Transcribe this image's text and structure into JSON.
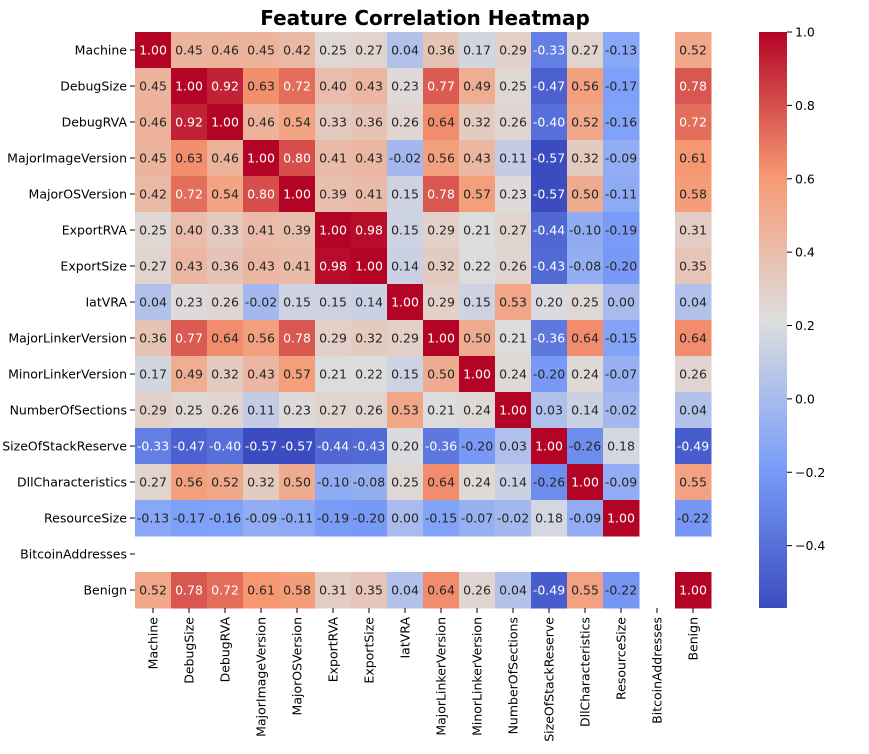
{
  "chart_data": {
    "type": "heatmap",
    "title": "Feature Correlation Heatmap",
    "labels": [
      "Machine",
      "DebugSize",
      "DebugRVA",
      "MajorImageVersion",
      "MajorOSVersion",
      "ExportRVA",
      "ExportSize",
      "IatVRA",
      "MajorLinkerVersion",
      "MinorLinkerVersion",
      "NumberOfSections",
      "SizeOfStackReserve",
      "DllCharacteristics",
      "ResourceSize",
      "BitcoinAddresses",
      "Benign"
    ],
    "matrix": [
      [
        1.0,
        0.45,
        0.46,
        0.45,
        0.42,
        0.25,
        0.27,
        0.04,
        0.36,
        0.17,
        0.29,
        -0.33,
        0.27,
        -0.13,
        null,
        0.52
      ],
      [
        0.45,
        1.0,
        0.92,
        0.63,
        0.72,
        0.4,
        0.43,
        0.23,
        0.77,
        0.49,
        0.25,
        -0.47,
        0.56,
        -0.17,
        null,
        0.78
      ],
      [
        0.46,
        0.92,
        1.0,
        0.46,
        0.54,
        0.33,
        0.36,
        0.26,
        0.64,
        0.32,
        0.26,
        -0.4,
        0.52,
        -0.16,
        null,
        0.72
      ],
      [
        0.45,
        0.63,
        0.46,
        1.0,
        0.8,
        0.41,
        0.43,
        -0.02,
        0.56,
        0.43,
        0.11,
        -0.57,
        0.32,
        -0.09,
        null,
        0.61
      ],
      [
        0.42,
        0.72,
        0.54,
        0.8,
        1.0,
        0.39,
        0.41,
        0.15,
        0.78,
        0.57,
        0.23,
        -0.57,
        0.5,
        -0.11,
        null,
        0.58
      ],
      [
        0.25,
        0.4,
        0.33,
        0.41,
        0.39,
        1.0,
        0.98,
        0.15,
        0.29,
        0.21,
        0.27,
        -0.44,
        -0.1,
        -0.19,
        null,
        0.31
      ],
      [
        0.27,
        0.43,
        0.36,
        0.43,
        0.41,
        0.98,
        1.0,
        0.14,
        0.32,
        0.22,
        0.26,
        -0.43,
        -0.08,
        -0.2,
        null,
        0.35
      ],
      [
        0.04,
        0.23,
        0.26,
        -0.02,
        0.15,
        0.15,
        0.14,
        1.0,
        0.29,
        0.15,
        0.53,
        0.2,
        0.25,
        0.0,
        null,
        0.04
      ],
      [
        0.36,
        0.77,
        0.64,
        0.56,
        0.78,
        0.29,
        0.32,
        0.29,
        1.0,
        0.5,
        0.21,
        -0.36,
        0.64,
        -0.15,
        null,
        0.64
      ],
      [
        0.17,
        0.49,
        0.32,
        0.43,
        0.57,
        0.21,
        0.22,
        0.15,
        0.5,
        1.0,
        0.24,
        -0.2,
        0.24,
        -0.07,
        null,
        0.26
      ],
      [
        0.29,
        0.25,
        0.26,
        0.11,
        0.23,
        0.27,
        0.26,
        0.53,
        0.21,
        0.24,
        1.0,
        0.03,
        0.14,
        -0.02,
        null,
        0.04
      ],
      [
        -0.33,
        -0.47,
        -0.4,
        -0.57,
        -0.57,
        -0.44,
        -0.43,
        0.2,
        -0.36,
        -0.2,
        0.03,
        1.0,
        -0.26,
        0.18,
        null,
        -0.49
      ],
      [
        0.27,
        0.56,
        0.52,
        0.32,
        0.5,
        -0.1,
        -0.08,
        0.25,
        0.64,
        0.24,
        0.14,
        -0.26,
        1.0,
        -0.09,
        null,
        0.55
      ],
      [
        -0.13,
        -0.17,
        -0.16,
        -0.09,
        -0.11,
        -0.19,
        -0.2,
        0.0,
        -0.15,
        -0.07,
        -0.02,
        0.18,
        -0.09,
        1.0,
        null,
        -0.22
      ],
      [
        null,
        null,
        null,
        null,
        null,
        null,
        null,
        null,
        null,
        null,
        null,
        null,
        null,
        null,
        null,
        null
      ],
      [
        0.52,
        0.78,
        0.72,
        0.61,
        0.58,
        0.31,
        0.35,
        0.04,
        0.64,
        0.26,
        0.04,
        -0.49,
        0.55,
        -0.22,
        null,
        1.0
      ]
    ],
    "value_format": "2 decimals",
    "colormap": "coolwarm",
    "vmin": -0.57,
    "vmax": 1.0,
    "colorbar_ticks": [
      "1.0",
      "0.8",
      "0.6",
      "0.4",
      "0.2",
      "0.0",
      "−0.2",
      "−0.4"
    ],
    "colorbar_tick_values": [
      1.0,
      0.8,
      0.6,
      0.4,
      0.2,
      0.0,
      -0.2,
      -0.4
    ],
    "missing_color": "#ffffff",
    "grid": false,
    "legend": "colorbar-right"
  }
}
